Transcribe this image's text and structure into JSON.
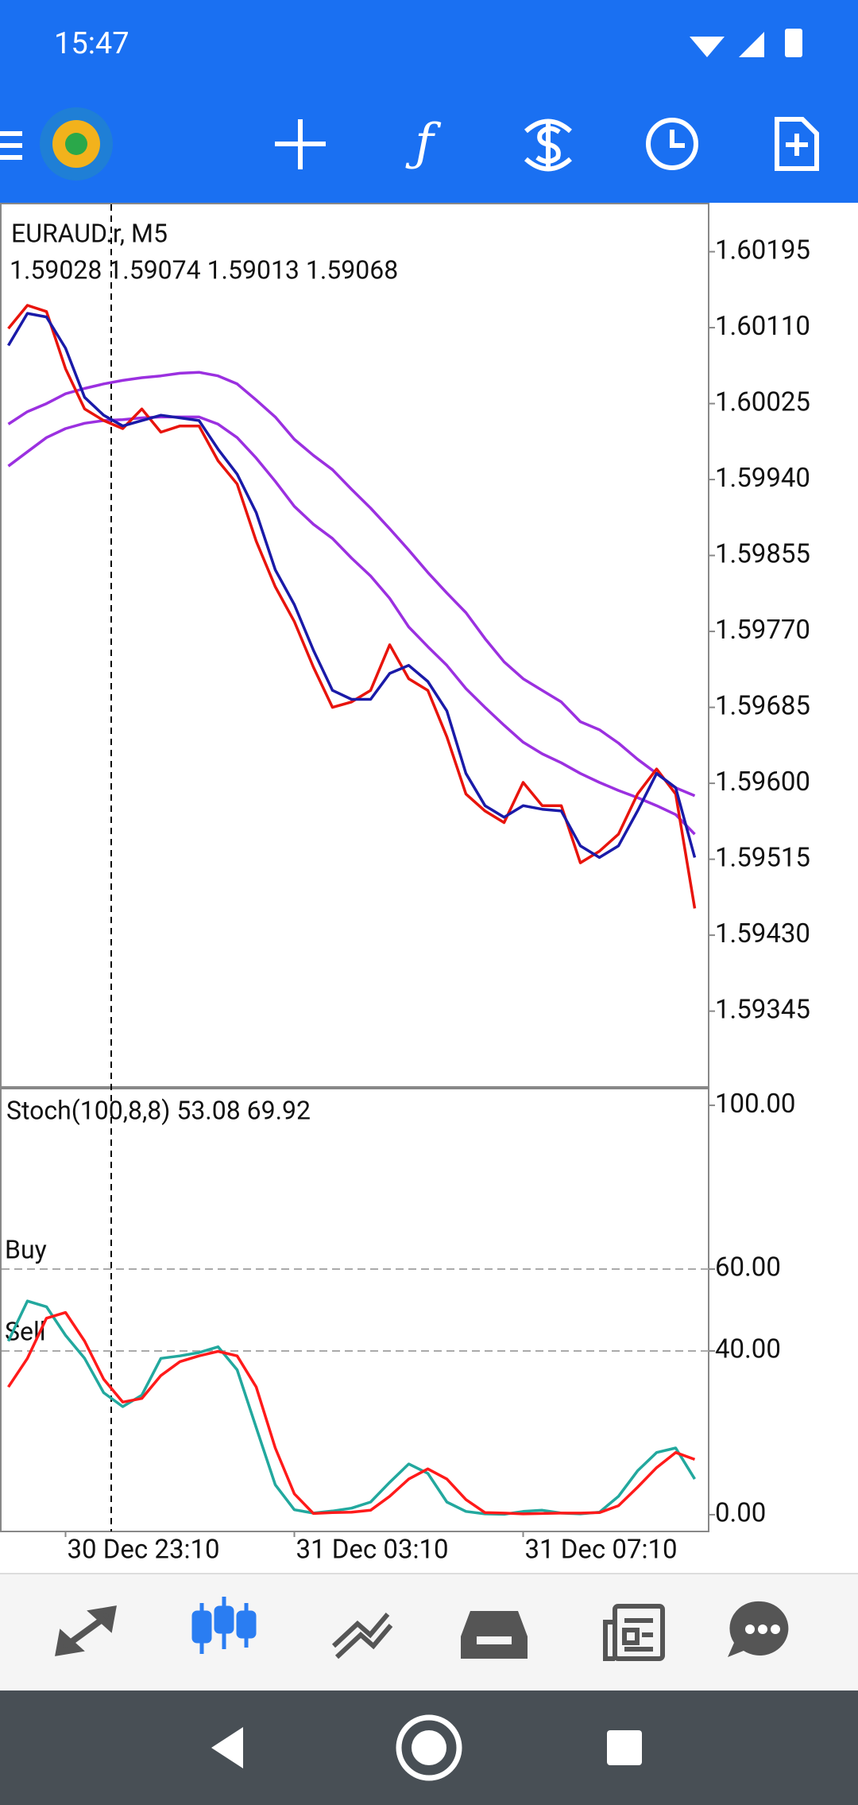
{
  "status_bar": {
    "time": "15:47"
  },
  "chart_data": [
    {
      "type": "line",
      "title": "EURAUD.r, M5",
      "subtitle": "1.59028 1.59074 1.59013 1.59068",
      "ylim": [
        1.59261,
        1.60248
      ],
      "yticks": [
        1.60195,
        {
          "value": 1.6011,
          "label": "1.60110"
        },
        1.60025,
        {
          "value": 1.5994,
          "label": "1.59940"
        },
        1.59855,
        {
          "value": 1.5977,
          "label": "1.59770"
        },
        1.59685,
        {
          "value": 1.596,
          "label": "1.59600"
        },
        1.59515,
        {
          "value": 1.5943,
          "label": "1.59430"
        },
        1.59345
      ],
      "series": [
        {
          "color": "#9b30e0",
          "values": [
            1.60002,
            1.60016,
            1.60025,
            1.60036,
            1.60042,
            1.60047,
            1.60051,
            1.60054,
            1.60056,
            1.60059,
            1.6006,
            1.60056,
            1.60047,
            1.60029,
            1.6001,
            1.59985,
            1.59967,
            1.59951,
            1.59929,
            1.59908,
            1.59885,
            1.59861,
            1.59836,
            1.59813,
            1.59791,
            1.59762,
            1.59736,
            1.59717,
            1.59704,
            1.59691,
            1.59669,
            1.5966,
            1.59645,
            1.59627,
            1.59611,
            1.59595,
            1.59586
          ]
        },
        {
          "color": "#9b30e0",
          "values": [
            1.59955,
            1.59971,
            1.59987,
            1.59997,
            1.60003,
            1.60006,
            1.60007,
            1.60009,
            1.6001,
            1.6001,
            1.6001,
            1.60002,
            1.59987,
            1.59964,
            1.59938,
            1.5991,
            1.5989,
            1.59874,
            1.59852,
            1.59832,
            1.59807,
            1.59775,
            1.59753,
            1.59732,
            1.59706,
            1.59685,
            1.59665,
            1.59646,
            1.59633,
            1.59623,
            1.59611,
            1.59601,
            1.59592,
            1.59584,
            1.59575,
            1.59565,
            1.59543
          ]
        },
        {
          "color": "#e8140c",
          "values": [
            1.60109,
            1.60135,
            1.60128,
            1.60064,
            1.60019,
            1.60006,
            1.59997,
            1.60019,
            1.59993,
            1.6,
            1.6,
            1.59961,
            1.59935,
            1.59871,
            1.5982,
            1.59781,
            1.5973,
            1.59685,
            1.59691,
            1.59704,
            1.59755,
            1.59717,
            1.59704,
            1.59652,
            1.59588,
            1.59569,
            1.59556,
            1.59601,
            1.59575,
            1.59575,
            1.59511,
            1.59524,
            1.59543,
            1.59588,
            1.59616,
            1.59588,
            1.5946
          ]
        },
        {
          "color": "#1a1aa8",
          "values": [
            1.6009,
            1.60126,
            1.60122,
            1.60087,
            1.60032,
            1.60012,
            1.6,
            1.60006,
            1.60012,
            1.60009,
            1.60006,
            1.59974,
            1.59946,
            1.59903,
            1.59839,
            1.598,
            1.59749,
            1.59704,
            1.59694,
            1.59694,
            1.59723,
            1.59732,
            1.59714,
            1.59681,
            1.59611,
            1.59575,
            1.59562,
            1.59575,
            1.59571,
            1.59569,
            1.5953,
            1.59517,
            1.5953,
            1.59569,
            1.59611,
            1.59595,
            1.59517
          ]
        }
      ]
    },
    {
      "type": "line",
      "title": "Stoch(100,8,8) 53.08 69.92",
      "categories": [
        null,
        null,
        null,
        "30 Dec 23:10",
        null,
        null,
        null,
        null,
        null,
        null,
        null,
        null,
        null,
        null,
        null,
        "31 Dec 03:10",
        null,
        null,
        null,
        null,
        null,
        null,
        null,
        null,
        null,
        null,
        null,
        "31 Dec 07:10",
        null,
        null,
        null,
        null,
        null,
        null,
        null,
        null,
        null
      ],
      "ylim": [
        -3.9,
        103.9
      ],
      "yticks": [
        {
          "value": 100,
          "label": "100.00"
        },
        {
          "value": 60,
          "label": "60.00"
        },
        {
          "value": 40,
          "label": "40.00"
        },
        {
          "value": 0,
          "label": "0.00"
        }
      ],
      "levels": [
        {
          "value": 60,
          "label": "Buy"
        },
        {
          "value": 40,
          "label": "Sell"
        }
      ],
      "series": [
        {
          "color": "#22a89e",
          "values": [
            42.4,
            52.2,
            50.8,
            43.8,
            38.2,
            29.8,
            26.4,
            29.2,
            38.2,
            38.8,
            39.6,
            41.0,
            35.4,
            21.3,
            7.3,
            1.2,
            0.4,
            0.9,
            1.6,
            3.1,
            7.9,
            12.4,
            10.1,
            3.1,
            0.8,
            0.2,
            0.1,
            0.8,
            1.1,
            0.4,
            0.2,
            0.6,
            4.5,
            10.7,
            15.2,
            16.3,
            8.7
          ]
        },
        {
          "color": "#ff1a1a",
          "values": [
            31.2,
            38.2,
            48.0,
            49.4,
            42.4,
            33.1,
            27.5,
            28.4,
            34.0,
            37.4,
            38.8,
            39.9,
            38.8,
            31.2,
            16.3,
            5.1,
            0.3,
            0.5,
            0.6,
            1.1,
            4.5,
            8.7,
            11.2,
            8.7,
            3.7,
            0.5,
            0.4,
            0.2,
            0.3,
            0.4,
            0.4,
            0.5,
            2.2,
            6.7,
            11.5,
            15.2,
            13.5
          ]
        }
      ]
    }
  ]
}
